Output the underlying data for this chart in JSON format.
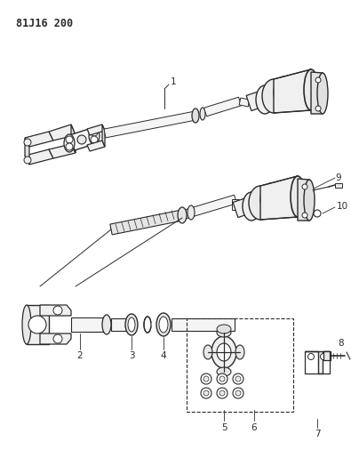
{
  "title": "81J16 200",
  "bg_color": "#ffffff",
  "line_color": "#2a2a2a",
  "title_fontsize": 8.5
}
